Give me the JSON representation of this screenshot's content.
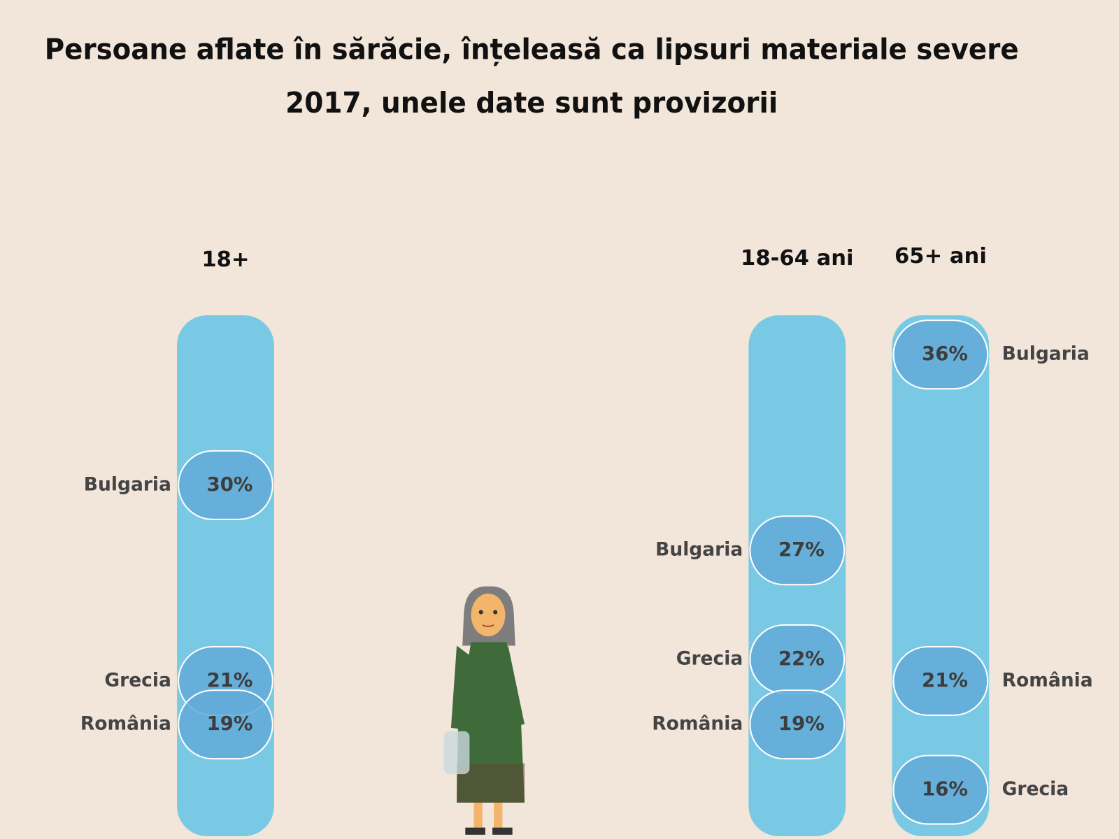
{
  "title": "Persoane aflate în sărăcie, înțeleasă ca lipsuri materiale severe",
  "subtitle": "2017, unele date sunt provizorii",
  "chart_data": [
    {
      "type": "dot",
      "title": "18+",
      "categories": [
        "Bulgaria",
        "Grecia",
        "România"
      ],
      "values": [
        30,
        21,
        19
      ],
      "value_labels": [
        "30%",
        "21%",
        "19%"
      ],
      "color": "#63aad8"
    },
    {
      "type": "dot",
      "title": "18-64 ani",
      "categories": [
        "Bulgaria",
        "Grecia",
        "România"
      ],
      "values": [
        27,
        22,
        19
      ],
      "value_labels": [
        "27%",
        "22%",
        "19%"
      ],
      "color": "#63aad8"
    },
    {
      "type": "dot",
      "title": "65+ ani",
      "categories": [
        "Bulgaria",
        "România",
        "Grecia"
      ],
      "values": [
        36,
        21,
        16
      ],
      "value_labels": [
        "36%",
        "21%",
        "16%"
      ],
      "color": "#63aad8"
    }
  ]
}
